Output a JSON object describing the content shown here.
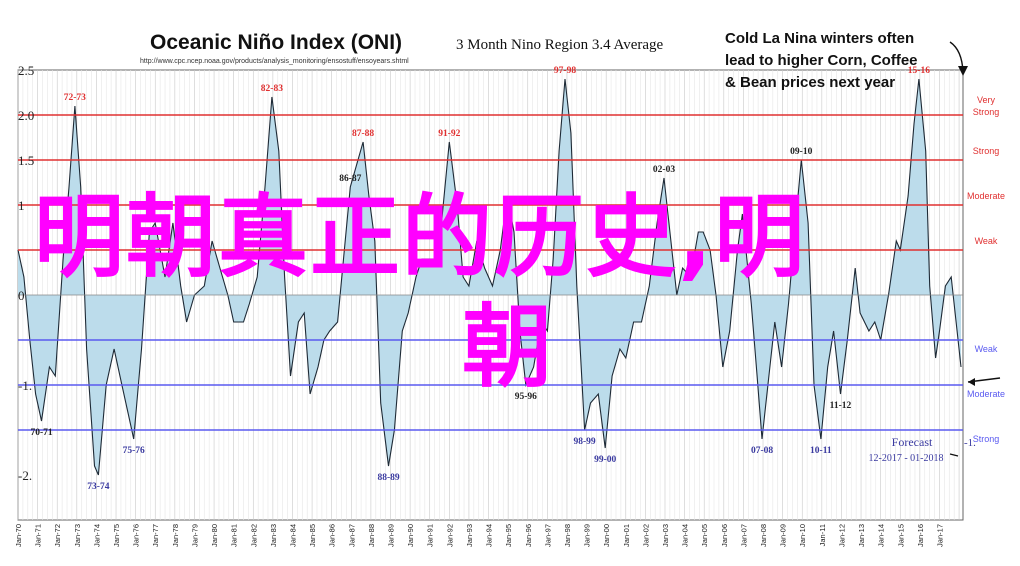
{
  "chart_data": {
    "type": "area",
    "title": "Oceanic Niño Index (ONI)",
    "subtitle": "3 Month Nino Region 3.4 Average",
    "source_url": "http://www.cpc.ncep.noaa.gov/products/analysis_monitoring/ensostuff/ensoyears.shtml",
    "ylim": [
      -2.5,
      2.5
    ],
    "y_ticks": [
      "2.5",
      "2.0",
      "1.5",
      "1",
      "0",
      "-1.",
      "-2."
    ],
    "x_ticks": [
      "Jan-70",
      "Jan-71",
      "Jan-72",
      "Jan-73",
      "Jan-74",
      "Jan-75",
      "Jan-76",
      "Jan-77",
      "Jan-78",
      "Jan-79",
      "Jan-80",
      "Jan-81",
      "Jan-82",
      "Jan-83",
      "Jan-84",
      "Jan-85",
      "Jan-86",
      "Jan-87",
      "Jan-88",
      "Jan-89",
      "Jan-90",
      "Jan-91",
      "Jan-92",
      "Jan-93",
      "Jan-94",
      "Jan-95",
      "Jan-96",
      "Jan-97",
      "Jan-98",
      "Jan-99",
      "Jan-00",
      "Jan-01",
      "Jan-02",
      "Jan-03",
      "Jan-04",
      "Jan-05",
      "Jan-06",
      "Jan-07",
      "Jan-08",
      "Jan-09",
      "Jan-10",
      "Jan-11",
      "Jan-12",
      "Jan-13",
      "Jan-14",
      "Jan-15",
      "Jan-16",
      "Jan-17"
    ],
    "x_range": [
      1970.0,
      2018.2
    ],
    "series": [
      {
        "points": [
          [
            1970.0,
            0.5
          ],
          [
            1970.3,
            0.2
          ],
          [
            1970.6,
            -0.5
          ],
          [
            1970.9,
            -1.1
          ],
          [
            1971.2,
            -1.4
          ],
          [
            1971.6,
            -0.8
          ],
          [
            1971.9,
            -0.9
          ],
          [
            1972.3,
            0.4
          ],
          [
            1972.6,
            1.2
          ],
          [
            1972.9,
            2.1
          ],
          [
            1973.2,
            1.2
          ],
          [
            1973.5,
            -0.6
          ],
          [
            1973.9,
            -1.9
          ],
          [
            1974.1,
            -2.0
          ],
          [
            1974.5,
            -1.0
          ],
          [
            1974.9,
            -0.6
          ],
          [
            1975.3,
            -1.0
          ],
          [
            1975.7,
            -1.4
          ],
          [
            1975.9,
            -1.6
          ],
          [
            1976.3,
            -0.6
          ],
          [
            1976.7,
            0.7
          ],
          [
            1977.0,
            0.8
          ],
          [
            1977.5,
            0.2
          ],
          [
            1977.9,
            0.8
          ],
          [
            1978.3,
            0.1
          ],
          [
            1978.6,
            -0.3
          ],
          [
            1979.0,
            0.0
          ],
          [
            1979.5,
            0.1
          ],
          [
            1979.9,
            0.6
          ],
          [
            1980.3,
            0.3
          ],
          [
            1980.7,
            0.0
          ],
          [
            1981.0,
            -0.3
          ],
          [
            1981.5,
            -0.3
          ],
          [
            1981.8,
            -0.1
          ],
          [
            1982.2,
            0.2
          ],
          [
            1982.6,
            1.2
          ],
          [
            1982.95,
            2.2
          ],
          [
            1983.3,
            1.6
          ],
          [
            1983.6,
            0.2
          ],
          [
            1983.9,
            -0.9
          ],
          [
            1984.3,
            -0.3
          ],
          [
            1984.6,
            -0.2
          ],
          [
            1984.9,
            -1.1
          ],
          [
            1985.3,
            -0.8
          ],
          [
            1985.6,
            -0.5
          ],
          [
            1985.9,
            -0.4
          ],
          [
            1986.3,
            -0.3
          ],
          [
            1986.6,
            0.4
          ],
          [
            1986.95,
            1.2
          ],
          [
            1987.6,
            1.7
          ],
          [
            1987.9,
            1.1
          ],
          [
            1988.2,
            0.6
          ],
          [
            1988.5,
            -1.2
          ],
          [
            1988.9,
            -1.9
          ],
          [
            1989.2,
            -1.5
          ],
          [
            1989.6,
            -0.4
          ],
          [
            1989.9,
            -0.2
          ],
          [
            1990.3,
            0.2
          ],
          [
            1990.6,
            0.4
          ],
          [
            1990.9,
            0.4
          ],
          [
            1991.3,
            0.4
          ],
          [
            1991.6,
            0.8
          ],
          [
            1992.0,
            1.7
          ],
          [
            1992.4,
            1.0
          ],
          [
            1992.7,
            0.2
          ],
          [
            1993.0,
            0.1
          ],
          [
            1993.4,
            0.6
          ],
          [
            1993.8,
            0.3
          ],
          [
            1994.2,
            0.1
          ],
          [
            1994.6,
            0.5
          ],
          [
            1994.95,
            1.1
          ],
          [
            1995.3,
            0.7
          ],
          [
            1995.6,
            -0.4
          ],
          [
            1995.9,
            -1.0
          ],
          [
            1996.3,
            -0.8
          ],
          [
            1996.7,
            -0.3
          ],
          [
            1997.0,
            -0.4
          ],
          [
            1997.3,
            0.4
          ],
          [
            1997.6,
            1.6
          ],
          [
            1997.9,
            2.4
          ],
          [
            1998.2,
            1.8
          ],
          [
            1998.5,
            0.1
          ],
          [
            1998.9,
            -1.5
          ],
          [
            1999.2,
            -1.2
          ],
          [
            1999.6,
            -1.1
          ],
          [
            1999.95,
            -1.7
          ],
          [
            2000.3,
            -0.9
          ],
          [
            2000.7,
            -0.6
          ],
          [
            2001.0,
            -0.7
          ],
          [
            2001.4,
            -0.3
          ],
          [
            2001.8,
            -0.3
          ],
          [
            2002.2,
            0.1
          ],
          [
            2002.6,
            0.8
          ],
          [
            2002.95,
            1.3
          ],
          [
            2003.3,
            0.6
          ],
          [
            2003.6,
            0.0
          ],
          [
            2003.9,
            0.3
          ],
          [
            2004.3,
            0.2
          ],
          [
            2004.7,
            0.7
          ],
          [
            2004.95,
            0.7
          ],
          [
            2005.3,
            0.5
          ],
          [
            2005.6,
            0.0
          ],
          [
            2005.95,
            -0.8
          ],
          [
            2006.3,
            -0.4
          ],
          [
            2006.7,
            0.5
          ],
          [
            2006.95,
            0.9
          ],
          [
            2007.4,
            -0.1
          ],
          [
            2007.7,
            -0.9
          ],
          [
            2007.95,
            -1.6
          ],
          [
            2008.3,
            -0.9
          ],
          [
            2008.6,
            -0.3
          ],
          [
            2008.95,
            -0.8
          ],
          [
            2009.3,
            -0.1
          ],
          [
            2009.7,
            0.9
          ],
          [
            2009.95,
            1.5
          ],
          [
            2010.3,
            0.8
          ],
          [
            2010.6,
            -1.0
          ],
          [
            2010.95,
            -1.6
          ],
          [
            2011.3,
            -0.8
          ],
          [
            2011.6,
            -0.4
          ],
          [
            2011.95,
            -1.1
          ],
          [
            2012.3,
            -0.5
          ],
          [
            2012.7,
            0.3
          ],
          [
            2012.95,
            -0.2
          ],
          [
            2013.4,
            -0.4
          ],
          [
            2013.7,
            -0.3
          ],
          [
            2014.0,
            -0.5
          ],
          [
            2014.4,
            0.0
          ],
          [
            2014.8,
            0.6
          ],
          [
            2015.0,
            0.5
          ],
          [
            2015.4,
            1.1
          ],
          [
            2015.7,
            1.9
          ],
          [
            2015.95,
            2.4
          ],
          [
            2016.3,
            1.6
          ],
          [
            2016.5,
            0.1
          ],
          [
            2016.8,
            -0.7
          ],
          [
            2017.0,
            -0.4
          ],
          [
            2017.3,
            0.1
          ],
          [
            2017.6,
            0.2
          ],
          [
            2017.85,
            -0.3
          ],
          [
            2018.1,
            -0.8
          ]
        ]
      }
    ],
    "threshold_lines": [
      {
        "y": 2.0,
        "label": "Very Strong",
        "color": "#e03030"
      },
      {
        "y": 1.5,
        "label": "Strong",
        "color": "#e03030"
      },
      {
        "y": 1.0,
        "label": "Moderate",
        "color": "#e03030"
      },
      {
        "y": 0.5,
        "label": "Weak",
        "color": "#e03030"
      },
      {
        "y": -0.5,
        "label": "Weak",
        "color": "#5a5af0"
      },
      {
        "y": -1.0,
        "label": "Moderate",
        "color": "#5a5af0"
      },
      {
        "y": -1.5,
        "label": "Strong",
        "color": "#5a5af0"
      }
    ],
    "event_labels": [
      {
        "text": "72-73",
        "x": 1972.9,
        "y": 2.1,
        "color": "#e03030"
      },
      {
        "text": "82-83",
        "x": 1982.95,
        "y": 2.2,
        "color": "#e03030"
      },
      {
        "text": "97-98",
        "x": 1997.9,
        "y": 2.4,
        "color": "#e03030"
      },
      {
        "text": "15-16",
        "x": 2015.95,
        "y": 2.4,
        "color": "#e03030"
      },
      {
        "text": "87-88",
        "x": 1987.6,
        "y": 1.7,
        "color": "#e03030"
      },
      {
        "text": "91-92",
        "x": 1992.0,
        "y": 1.7,
        "color": "#e03030"
      },
      {
        "text": "09-10",
        "x": 2009.95,
        "y": 1.5,
        "color": "#222222"
      },
      {
        "text": "86-87",
        "x": 1986.95,
        "y": 1.2,
        "color": "#222222"
      },
      {
        "text": "02-03",
        "x": 2002.95,
        "y": 1.3,
        "color": "#222222"
      },
      {
        "text": "95-96",
        "x": 1995.9,
        "y": -1.0,
        "color": "#222222"
      },
      {
        "text": "11-12",
        "x": 2011.95,
        "y": -1.1,
        "color": "#222222"
      },
      {
        "text": "70-71",
        "x": 1971.2,
        "y": -1.4,
        "color": "#222222"
      },
      {
        "text": "75-76",
        "x": 1975.9,
        "y": -1.6,
        "color": "#3a3aa0"
      },
      {
        "text": "73-74",
        "x": 1974.1,
        "y": -2.0,
        "color": "#3a3aa0"
      },
      {
        "text": "88-89",
        "x": 1988.9,
        "y": -1.9,
        "color": "#3a3aa0"
      },
      {
        "text": "98-99",
        "x": 1998.9,
        "y": -1.5,
        "color": "#3a3aa0"
      },
      {
        "text": "99-00",
        "x": 1999.95,
        "y": -1.7,
        "color": "#3a3aa0"
      },
      {
        "text": "07-08",
        "x": 2007.95,
        "y": -1.6,
        "color": "#3a3aa0"
      },
      {
        "text": "10-11",
        "x": 2010.95,
        "y": -1.6,
        "color": "#3a3aa0"
      }
    ],
    "annotation": "Cold La Nina winters often lead to higher Corn, Coffee & Bean prices next year",
    "forecast": {
      "label": "Forecast",
      "range": "12-2017 - 01-2018",
      "value_label": "-1."
    },
    "colors": {
      "fill": "#bcdceb",
      "line": "#1e2a36",
      "annotation": "#111111",
      "threshold_warm": "#e03030",
      "threshold_cold": "#5a5af0"
    }
  },
  "overlay": {
    "line1": "明朝真正的历史,明",
    "line2": "朝"
  }
}
